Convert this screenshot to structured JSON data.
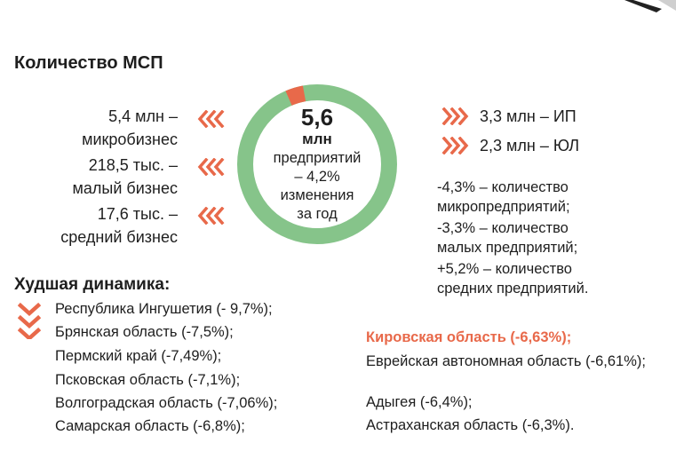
{
  "section": {
    "title": "Количество МСП",
    "colors": {
      "accent": "#e8694a",
      "green": "#86c48a",
      "text": "#1e1e1e"
    },
    "left_items": [
      {
        "line1": "5,4 млн –",
        "line2": "микробизнес",
        "icon": "chevron-left-icon"
      },
      {
        "line1": "218,5 тыс. –",
        "line2": "малый бизнес",
        "icon": "chevron-left-icon"
      },
      {
        "line1": "17,6 тыс. –",
        "line2": "средний бизнес",
        "icon": "chevron-left-icon"
      }
    ],
    "donut": {
      "number": "5,6",
      "unit": "млн",
      "line1": "предприятий",
      "line2": "– 4,2%",
      "line3": "изменения",
      "line4": "за год"
    },
    "right_items": [
      {
        "label": "3,3 млн – ИП",
        "icon": "chevron-right-icon"
      },
      {
        "label": "2,3 млн – ЮЛ",
        "icon": "chevron-right-icon"
      }
    ],
    "stats": [
      {
        "line1": "-4,3% – количество",
        "line2": "микропредприятий;"
      },
      {
        "line1": "-3,3% – количество",
        "line2": "малых предприятий;"
      },
      {
        "line1": "+5,2% – количество",
        "line2": "средних предприятий."
      }
    ]
  },
  "worst": {
    "title": "Худшая динамика:",
    "icon": "chevron-down-icon",
    "left_regions": [
      "Республика Ингушетия (- 9,7%);",
      "Брянская область (-7,5%);",
      "Пермский край (-7,49%);",
      "Псковская область (-7,1%);",
      "Волгоградская область (-7,06%);",
      "Самарская область (-6,8%);"
    ],
    "right_regions": [
      "Кировская область (-6,63%);",
      "Еврейская автономная область (-6,61%);",
      "Адыгея (-6,4%);",
      "Астраханская область (-6,3%)."
    ]
  }
}
